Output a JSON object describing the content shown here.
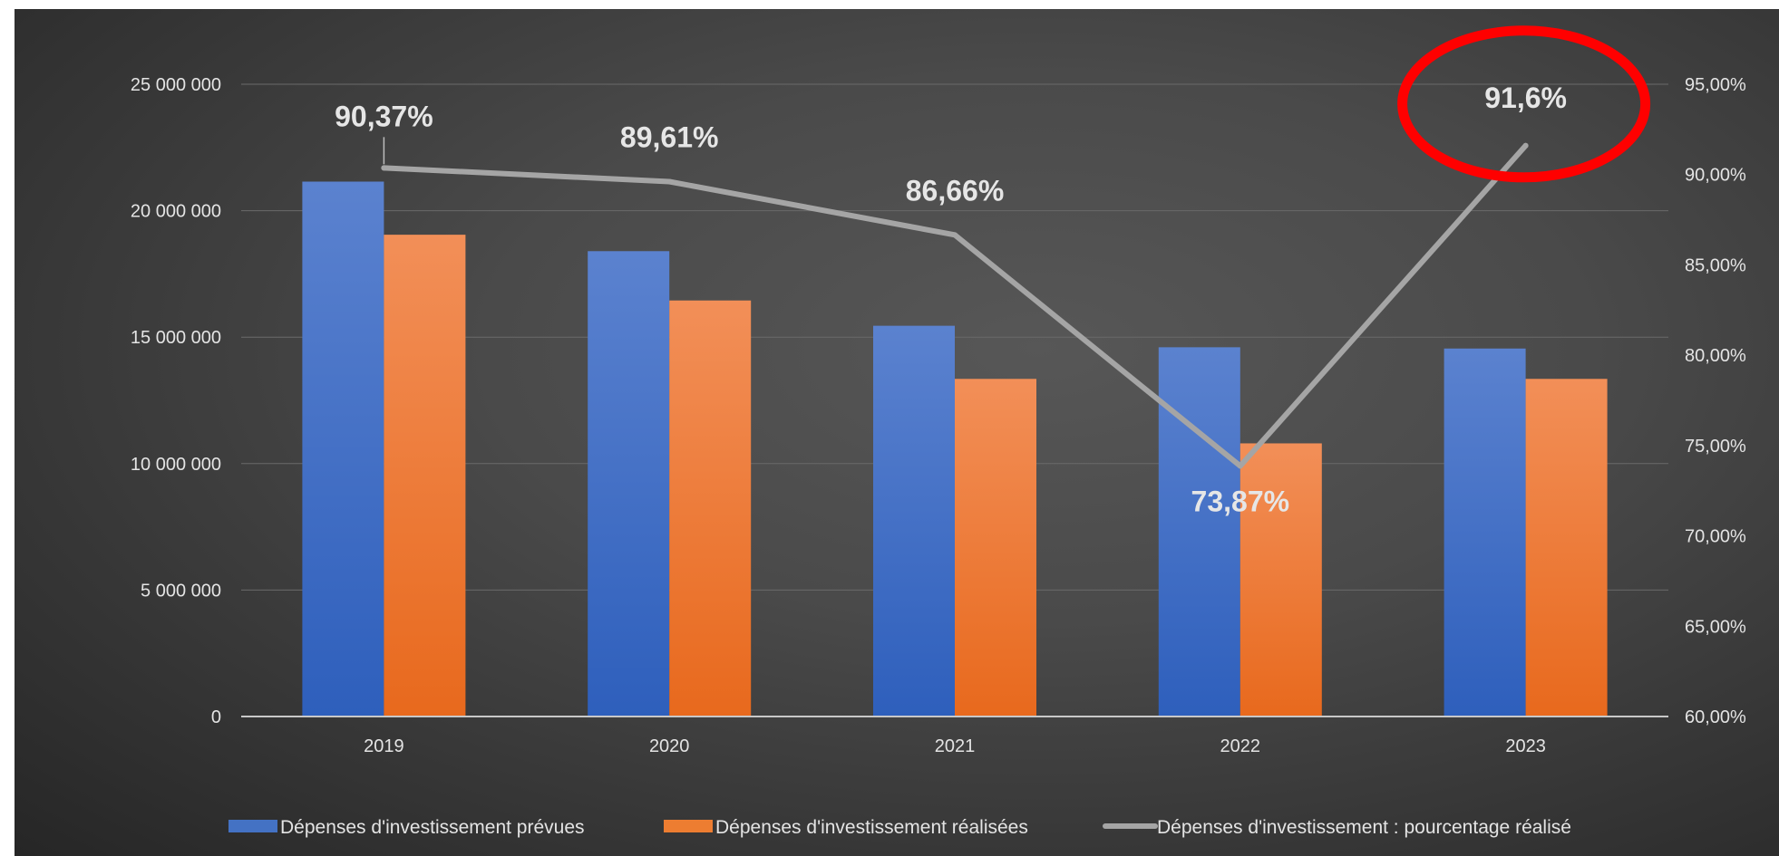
{
  "chart_data": {
    "type": "bar",
    "categories": [
      "2019",
      "2020",
      "2021",
      "2022",
      "2023"
    ],
    "series": [
      {
        "name": "Dépenses d'investissement prévues",
        "type": "bar",
        "axis": "left",
        "color": "#4472C4",
        "values": [
          21150000,
          18400000,
          15450000,
          14600000,
          14550000
        ]
      },
      {
        "name": "Dépenses d'investissement réalisées",
        "type": "bar",
        "axis": "left",
        "color": "#ED7D31",
        "values": [
          19050000,
          16450000,
          13350000,
          10800000,
          13350000
        ]
      },
      {
        "name": "Dépenses d'investissement : pourcentage réalisé",
        "type": "line",
        "axis": "right",
        "color": "#A5A5A5",
        "values": [
          90.37,
          89.61,
          86.66,
          73.87,
          91.6
        ],
        "labels": [
          "90,37%",
          "89,61%",
          "86,66%",
          "73,87%",
          "91,6%"
        ]
      }
    ],
    "y_left": {
      "min": 0,
      "max": 25000000,
      "step": 5000000,
      "ticks": [
        "0",
        "5 000 000",
        "10 000 000",
        "15 000 000",
        "20 000 000",
        "25 000 000"
      ]
    },
    "y_right": {
      "min": 60,
      "max": 95,
      "step": 5,
      "ticks": [
        "60,00%",
        "65,00%",
        "70,00%",
        "75,00%",
        "80,00%",
        "85,00%",
        "90,00%",
        "95,00%"
      ]
    },
    "grid": true,
    "legend": "bottom",
    "highlight": {
      "category": "2023",
      "shape": "ellipse",
      "color": "#FF0000"
    }
  }
}
